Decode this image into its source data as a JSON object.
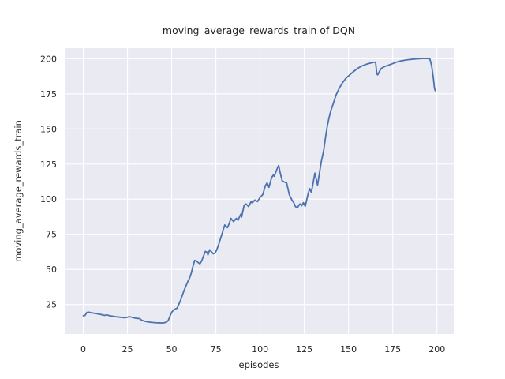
{
  "figure": {
    "title": "moving_average_rewards_train of DQN",
    "xlabel": "episodes",
    "ylabel": "moving_average_rewards_train"
  },
  "colors": {
    "line": "#4c72b0",
    "plot_background": "#eaeaf2",
    "figure_background": "#ffffff",
    "grid": "#ffffff",
    "text": "#262626"
  },
  "chart_data": {
    "type": "line",
    "title": "moving_average_rewards_train of DQN",
    "xlabel": "episodes",
    "ylabel": "moving_average_rewards_train",
    "xlim": [
      -10.5,
      209.5
    ],
    "ylim": [
      4,
      207.5
    ],
    "xticks": [
      0,
      25,
      50,
      75,
      100,
      125,
      150,
      175,
      200
    ],
    "yticks": [
      25,
      50,
      75,
      100,
      125,
      150,
      175,
      200
    ],
    "grid": true,
    "legend_position": "none",
    "series": [
      {
        "name": "moving_average_rewards_train",
        "color": "#4c72b0",
        "points": [
          [
            0,
            17
          ],
          [
            1,
            17.2
          ],
          [
            2,
            19.3
          ],
          [
            3,
            19.5
          ],
          [
            5,
            19
          ],
          [
            7,
            18.6
          ],
          [
            9,
            18.1
          ],
          [
            11,
            17.6
          ],
          [
            12,
            17.2
          ],
          [
            13,
            17.6
          ],
          [
            15,
            17
          ],
          [
            17,
            16.6
          ],
          [
            19,
            16.2
          ],
          [
            21,
            15.9
          ],
          [
            23,
            15.6
          ],
          [
            25,
            15.9
          ],
          [
            26,
            16.4
          ],
          [
            28,
            15.7
          ],
          [
            30,
            15.2
          ],
          [
            32,
            14.9
          ],
          [
            33,
            13.8
          ],
          [
            35,
            13
          ],
          [
            37,
            12.5
          ],
          [
            39,
            12.2
          ],
          [
            41,
            12
          ],
          [
            43,
            11.9
          ],
          [
            45,
            11.8
          ],
          [
            46,
            12.1
          ],
          [
            47,
            12.4
          ],
          [
            48,
            13.5
          ],
          [
            49,
            16.5
          ],
          [
            50,
            19.5
          ],
          [
            51,
            21
          ],
          [
            52,
            21.8
          ],
          [
            53,
            22.3
          ],
          [
            54,
            25
          ],
          [
            55,
            28
          ],
          [
            56,
            31.5
          ],
          [
            57,
            35
          ],
          [
            58,
            38
          ],
          [
            59,
            41
          ],
          [
            60,
            43.5
          ],
          [
            61,
            47
          ],
          [
            62,
            52
          ],
          [
            63,
            56.4
          ],
          [
            64,
            56
          ],
          [
            65,
            54.8
          ],
          [
            66,
            54
          ],
          [
            67,
            56.2
          ],
          [
            68,
            59.5
          ],
          [
            69,
            62.8
          ],
          [
            70,
            62.2
          ],
          [
            70.5,
            60.3
          ],
          [
            71.5,
            63.9
          ],
          [
            72.5,
            62.5
          ],
          [
            73.5,
            61.1
          ],
          [
            74.5,
            61.6
          ],
          [
            75.5,
            64
          ],
          [
            76.5,
            67.5
          ],
          [
            77.5,
            71.5
          ],
          [
            78.5,
            75.5
          ],
          [
            80,
            81.6
          ],
          [
            81.5,
            79.7
          ],
          [
            82.5,
            82.5
          ],
          [
            83.5,
            86.3
          ],
          [
            85,
            84
          ],
          [
            86.5,
            86.3
          ],
          [
            87.5,
            85
          ],
          [
            89,
            89.2
          ],
          [
            89.5,
            87.2
          ],
          [
            91,
            95.7
          ],
          [
            92,
            96.6
          ],
          [
            93.5,
            94.7
          ],
          [
            95,
            98.5
          ],
          [
            95.5,
            97.2
          ],
          [
            97,
            99.4
          ],
          [
            98.5,
            98.3
          ],
          [
            100,
            101.3
          ],
          [
            101.5,
            103.2
          ],
          [
            103,
            109.7
          ],
          [
            104,
            111.6
          ],
          [
            105,
            108.4
          ],
          [
            106.5,
            115.3
          ],
          [
            107.5,
            117.2
          ],
          [
            108,
            116.3
          ],
          [
            110,
            122.8
          ],
          [
            110.5,
            124
          ],
          [
            111.5,
            118
          ],
          [
            112.5,
            113
          ],
          [
            114,
            112
          ],
          [
            115,
            111.6
          ],
          [
            116.5,
            103.2
          ],
          [
            118,
            99.4
          ],
          [
            119,
            97.5
          ],
          [
            120,
            94.7
          ],
          [
            121,
            93.8
          ],
          [
            122.5,
            96.6
          ],
          [
            123.5,
            95.3
          ],
          [
            124.5,
            97.5
          ],
          [
            125.5,
            94.8
          ],
          [
            127,
            103
          ],
          [
            128,
            107.5
          ],
          [
            129,
            104.8
          ],
          [
            131,
            118.5
          ],
          [
            132.5,
            110
          ],
          [
            133.5,
            118
          ],
          [
            134.5,
            126
          ],
          [
            136,
            135
          ],
          [
            137,
            144
          ],
          [
            138,
            152
          ],
          [
            139,
            158
          ],
          [
            140,
            163
          ],
          [
            141.5,
            168.5
          ],
          [
            143,
            174.3
          ],
          [
            145,
            179.5
          ],
          [
            147,
            183.6
          ],
          [
            148.5,
            186
          ],
          [
            150.5,
            188.3
          ],
          [
            152.5,
            190.5
          ],
          [
            155,
            193
          ],
          [
            157,
            194.5
          ],
          [
            159.5,
            195.8
          ],
          [
            161.5,
            196.6
          ],
          [
            164,
            197.3
          ],
          [
            165.3,
            197.6
          ],
          [
            166,
            189.2
          ],
          [
            166.5,
            188.5
          ],
          [
            167.5,
            191
          ],
          [
            168.5,
            193
          ],
          [
            170,
            194.2
          ],
          [
            171.5,
            194.9
          ],
          [
            173.5,
            195.8
          ],
          [
            175.5,
            196.8
          ],
          [
            177.5,
            197.7
          ],
          [
            179.5,
            198.4
          ],
          [
            183,
            199.2
          ],
          [
            186,
            199.6
          ],
          [
            189,
            199.9
          ],
          [
            192,
            200.1
          ],
          [
            194.5,
            200.2
          ],
          [
            196,
            199.9
          ],
          [
            197,
            195
          ],
          [
            198,
            186
          ],
          [
            198.6,
            179
          ],
          [
            199,
            177.3
          ]
        ]
      }
    ]
  }
}
